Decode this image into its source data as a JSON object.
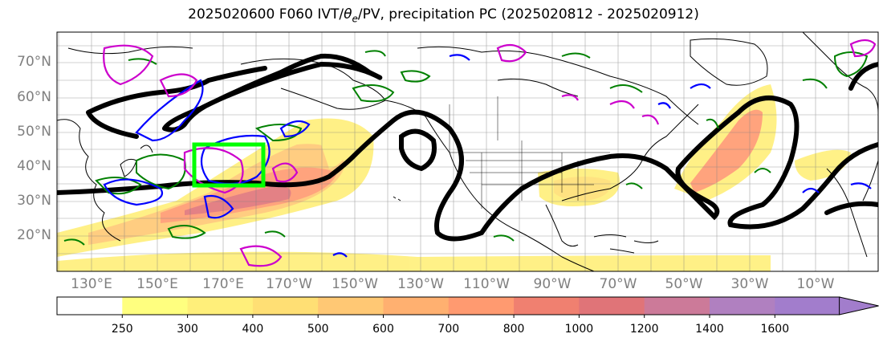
{
  "title_main": "2025020600 F060 IVT/",
  "title_theta": "θ",
  "title_sub": "e",
  "title_rest": "/PV, precipitation PC (2025020812 - 2025020912)",
  "latitude_labels": [
    "70°N",
    "60°N",
    "50°N",
    "40°N",
    "30°N",
    "20°N"
  ],
  "longitude_labels": [
    "130°E",
    "150°E",
    "170°E",
    "170°W",
    "150°W",
    "130°W",
    "110°W",
    "90°W",
    "70°W",
    "50°W",
    "30°W",
    "10°W"
  ],
  "colorbar": {
    "levels": [
      "250",
      "300",
      "400",
      "500",
      "600",
      "700",
      "800",
      "1000",
      "1200",
      "1400",
      "1600"
    ],
    "colors": [
      "#ffffff",
      "#ffff7f",
      "#ffef7a",
      "#ffdf74",
      "#ffc874",
      "#ffb070",
      "#ff9a70",
      "#f08070",
      "#e07478",
      "#cc7a99",
      "#b080c0",
      "#a27dcc"
    ],
    "extend": "max"
  },
  "colors": {
    "ivt_contour_black": "#000000",
    "theta_e_green": "#008000",
    "pv_blue": "#0000ff",
    "pv_magenta": "#cc00cc",
    "highlight_box": "#00ff00",
    "grid": "#808080",
    "coast": "#000000"
  }
}
